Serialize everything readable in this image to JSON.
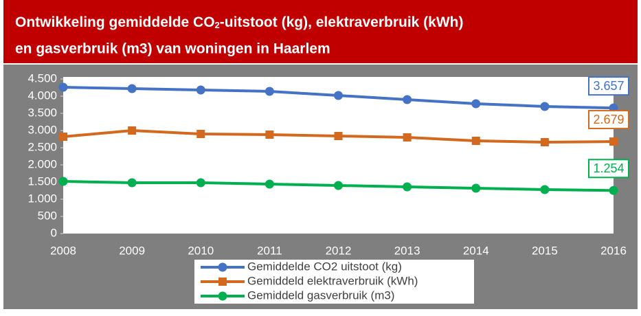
{
  "chart_data": {
    "type": "line",
    "title": [
      "Ontwikkeling gemiddelde CO",
      "2",
      "-uitstoot (kg), elektraverbruik (kWh)",
      "en gasverbruik (m3) van woningen in Haarlem"
    ],
    "categories": [
      "2008",
      "2009",
      "2010",
      "2011",
      "2012",
      "2013",
      "2014",
      "2015",
      "2016"
    ],
    "series": [
      {
        "name": "Gemiddelde CO2 uitstoot (kg)",
        "color": "#4472c4",
        "marker": "circle",
        "values": [
          4260,
          4220,
          4180,
          4140,
          4020,
          3900,
          3780,
          3700,
          3657
        ],
        "value_labels": [
          null,
          null,
          null,
          null,
          null,
          null,
          null,
          null,
          "3.657"
        ]
      },
      {
        "name": "Gemiddeld elektraverbruik (kWh)",
        "color": "#d2691e",
        "marker": "square",
        "values": [
          2820,
          3000,
          2900,
          2880,
          2840,
          2800,
          2700,
          2660,
          2679
        ],
        "value_labels": [
          null,
          null,
          null,
          null,
          null,
          null,
          null,
          null,
          "2.679"
        ]
      },
      {
        "name": "Gemiddeld gasverbruik  (m3)",
        "color": "#00b050",
        "marker": "circle",
        "values": [
          1520,
          1480,
          1480,
          1440,
          1400,
          1360,
          1320,
          1280,
          1254
        ],
        "value_labels": [
          null,
          null,
          null,
          null,
          null,
          null,
          null,
          null,
          "1.254"
        ]
      }
    ],
    "ylim": [
      0,
      4500
    ],
    "yticks": [
      0,
      500,
      {
        "value": 1000,
        "label": "1.000"
      },
      {
        "value": 1500,
        "label": "1.500"
      },
      {
        "value": 2000,
        "label": "2.000"
      },
      {
        "value": 2500,
        "label": "2.500"
      },
      {
        "value": 3000,
        "label": "3.000"
      },
      {
        "value": 3500,
        "label": "3.500"
      },
      {
        "value": 4000,
        "label": "4.000"
      },
      {
        "value": 4500,
        "label": "4.500"
      }
    ],
    "grid": false,
    "legend": "bottom"
  }
}
